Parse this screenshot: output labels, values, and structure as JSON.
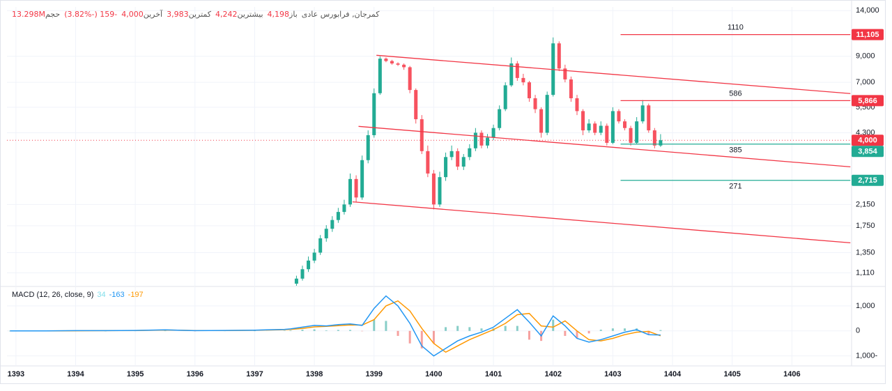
{
  "chart_data": [
    {
      "type": "candlestick",
      "header": {
        "symbol": "کمرجان, فرابورس عادی",
        "fields": [
          {
            "label": "باز",
            "value": "4,198"
          },
          {
            "label": "بیشترین",
            "value": "4,242"
          },
          {
            "label": "کمترین",
            "value": "3,983"
          },
          {
            "label": "آخرین",
            "value": "4,000"
          }
        ],
        "change": "-159 (-3.82%)",
        "volume": {
          "label": "حجم",
          "value": "13.298M"
        }
      },
      "scale": "log",
      "ylim": [
        980,
        14500
      ],
      "yticks": [
        {
          "value": 14000,
          "label": "14,000"
        },
        {
          "value": 9000,
          "label": "9,000"
        },
        {
          "value": 7000,
          "label": "7,000"
        },
        {
          "value": 5500,
          "label": "5,500"
        },
        {
          "value": 4300,
          "label": "4,300"
        },
        {
          "value": 2150,
          "label": "2,150"
        },
        {
          "value": 1750,
          "label": "1,750"
        },
        {
          "value": 1350,
          "label": "1,350"
        },
        {
          "value": 1110,
          "label": "1,110"
        }
      ],
      "x": [
        1397.7,
        1397.8,
        1397.9,
        1398.0,
        1398.1,
        1398.2,
        1398.3,
        1398.4,
        1398.5,
        1398.6,
        1398.7,
        1398.8,
        1398.9,
        1399.0,
        1399.1,
        1399.2,
        1399.3,
        1399.4,
        1399.5,
        1399.6,
        1399.7,
        1399.8,
        1399.9,
        1400.0,
        1400.1,
        1400.2,
        1400.3,
        1400.4,
        1400.5,
        1400.6,
        1400.7,
        1400.8,
        1400.9,
        1401.0,
        1401.1,
        1401.2,
        1401.3,
        1401.4,
        1401.5,
        1401.6,
        1401.7,
        1401.8,
        1401.9,
        1402.0,
        1402.1,
        1402.2,
        1402.3,
        1402.4,
        1402.5,
        1402.6,
        1402.7,
        1402.8,
        1402.9,
        1403.0,
        1403.1,
        1403.2,
        1403.3,
        1403.4,
        1403.5,
        1403.6,
        1403.7,
        1403.8
      ],
      "open": [
        1000,
        1050,
        1150,
        1250,
        1350,
        1550,
        1700,
        1850,
        2000,
        2150,
        2750,
        2300,
        3300,
        4200,
        6300,
        8800,
        8600,
        8400,
        8300,
        8100,
        6500,
        4900,
        3600,
        2900,
        2150,
        2800,
        3400,
        3600,
        3100,
        3400,
        3700,
        4300,
        3800,
        4100,
        4500,
        5400,
        6800,
        8400,
        7300,
        7000,
        6000,
        5400,
        4300,
        6200,
        10200,
        8000,
        7200,
        6000,
        5300,
        4400,
        4700,
        4300,
        4600,
        3900,
        5300,
        4800,
        4500,
        3900,
        4800,
        5600,
        4400,
        3800
      ],
      "high": [
        1080,
        1190,
        1300,
        1400,
        1600,
        1760,
        1920,
        2080,
        2250,
        2900,
        2850,
        3450,
        4400,
        6600,
        9000,
        8900,
        8700,
        8500,
        8400,
        8200,
        6600,
        5100,
        3800,
        3000,
        2950,
        3550,
        3800,
        3700,
        3500,
        3850,
        4500,
        4400,
        4250,
        4650,
        5600,
        7000,
        8900,
        8600,
        7600,
        7100,
        6200,
        5500,
        6400,
        10800,
        10400,
        8300,
        7400,
        6200,
        5400,
        4900,
        4800,
        4800,
        4700,
        5500,
        5400,
        4900,
        4600,
        5000,
        5900,
        5700,
        4500,
        4242
      ],
      "low": [
        980,
        1030,
        1120,
        1220,
        1320,
        1500,
        1650,
        1800,
        1950,
        2100,
        2200,
        2250,
        3200,
        4100,
        6200,
        8500,
        8300,
        8200,
        7900,
        6300,
        4700,
        3500,
        2800,
        2050,
        2100,
        2700,
        3300,
        3000,
        3000,
        3300,
        3600,
        3700,
        3700,
        4000,
        4400,
        5300,
        6700,
        7100,
        6800,
        5800,
        5200,
        4100,
        4200,
        6100,
        7800,
        7000,
        5800,
        5100,
        4200,
        4300,
        4200,
        4200,
        3800,
        3850,
        4700,
        4400,
        3800,
        3850,
        4700,
        4300,
        3700,
        3750
      ],
      "close": [
        1050,
        1150,
        1250,
        1350,
        1550,
        1700,
        1850,
        2000,
        2150,
        2750,
        2300,
        3300,
        4200,
        6300,
        8800,
        8600,
        8400,
        8300,
        8100,
        6500,
        4900,
        3600,
        2900,
        2150,
        2800,
        3400,
        3600,
        3100,
        3400,
        3700,
        4300,
        3800,
        4100,
        4500,
        5400,
        6800,
        8400,
        7300,
        7000,
        6000,
        5400,
        4300,
        6200,
        10200,
        8000,
        7200,
        6000,
        5300,
        4400,
        4700,
        4300,
        4600,
        3900,
        5300,
        4800,
        4500,
        3900,
        4800,
        5600,
        4400,
        3800,
        4000
      ],
      "up_color": "#22ab94",
      "down_color": "#f7525f",
      "trendline_color": "#f23645",
      "trendlines": [
        {
          "x": [
            1399.04,
            1406.98
          ],
          "y": [
            9090,
            6280
          ]
        },
        {
          "x": [
            1398.74,
            1406.98
          ],
          "y": [
            4573,
            3093
          ]
        },
        {
          "x": [
            1398.64,
            1406.98
          ],
          "y": [
            2205,
            1484
          ]
        }
      ],
      "level_x": [
        1403.13,
        1406.98
      ],
      "levels": [
        {
          "value": 11105,
          "label": "11,105",
          "color": "#f23645",
          "text": 1110,
          "text_position": "above"
        },
        {
          "value": 5866,
          "label": "5,866",
          "color": "#f23645",
          "text": 586,
          "text_position": "above"
        },
        {
          "value": 3854,
          "label": "3,854",
          "color": "#22ab94",
          "text": 385,
          "text_position": "below"
        },
        {
          "value": 2715,
          "label": "2,715",
          "color": "#22ab94",
          "text": 271,
          "text_position": "below"
        }
      ],
      "last_price": {
        "value": 4000,
        "label": "4,000",
        "color": "#f23645"
      },
      "grid": true
    },
    {
      "type": "macd",
      "legend": {
        "text": "MACD (12, 26, close, 9)",
        "values": [
          34,
          -163,
          -197
        ],
        "colors": [
          "#80deea",
          "#2196f3",
          "#ff9800"
        ]
      },
      "xlim": [
        1392.85,
        1407.0
      ],
      "xticks": [
        1393,
        1394,
        1395,
        1396,
        1397,
        1398,
        1399,
        1400,
        1401,
        1402,
        1403,
        1404,
        1405,
        1406
      ],
      "ylim": [
        -1400,
        1750
      ],
      "yticks": [
        {
          "value": 1000,
          "label": "1,000"
        },
        0,
        {
          "value": -1000,
          "label": "1,000-"
        }
      ],
      "x": [
        1392.9,
        1393.5,
        1394.0,
        1394.5,
        1395.0,
        1395.5,
        1396.0,
        1396.5,
        1397.0,
        1397.5,
        1397.6,
        1397.8,
        1398.0,
        1398.2,
        1398.4,
        1398.6,
        1398.8,
        1399.0,
        1399.2,
        1399.4,
        1399.6,
        1399.8,
        1400.0,
        1400.2,
        1400.4,
        1400.6,
        1400.8,
        1401.0,
        1401.2,
        1401.4,
        1401.6,
        1401.8,
        1402.0,
        1402.2,
        1402.4,
        1402.6,
        1402.8,
        1403.0,
        1403.2,
        1403.4,
        1403.6,
        1403.8
      ],
      "macd": [
        0,
        0,
        10,
        10,
        20,
        40,
        10,
        20,
        30,
        60,
        80,
        150,
        220,
        200,
        250,
        280,
        220,
        900,
        1400,
        1000,
        300,
        -600,
        -1000,
        -700,
        -400,
        -200,
        -50,
        150,
        500,
        850,
        350,
        -200,
        600,
        200,
        -300,
        -450,
        -350,
        -200,
        -50,
        50,
        -150,
        -163
      ],
      "signal": [
        0,
        0,
        5,
        10,
        15,
        35,
        15,
        15,
        25,
        50,
        60,
        100,
        160,
        180,
        210,
        240,
        230,
        450,
        1000,
        1200,
        800,
        100,
        -500,
        -850,
        -600,
        -350,
        -150,
        50,
        300,
        650,
        700,
        200,
        150,
        400,
        0,
        -350,
        -400,
        -300,
        -150,
        -50,
        -20,
        -197
      ],
      "histogram": [
        0,
        0,
        5,
        0,
        5,
        5,
        -5,
        5,
        5,
        10,
        20,
        50,
        60,
        20,
        40,
        40,
        -10,
        450,
        400,
        -200,
        -500,
        -700,
        -500,
        150,
        200,
        150,
        100,
        100,
        200,
        200,
        -350,
        -400,
        450,
        -200,
        -300,
        -100,
        50,
        100,
        100,
        100,
        -130,
        34
      ],
      "macd_color": "#2196f3",
      "signal_color": "#ff9800",
      "hist_up_color": "#26a69a",
      "hist_down_color": "#ef5350",
      "grid": true
    }
  ]
}
